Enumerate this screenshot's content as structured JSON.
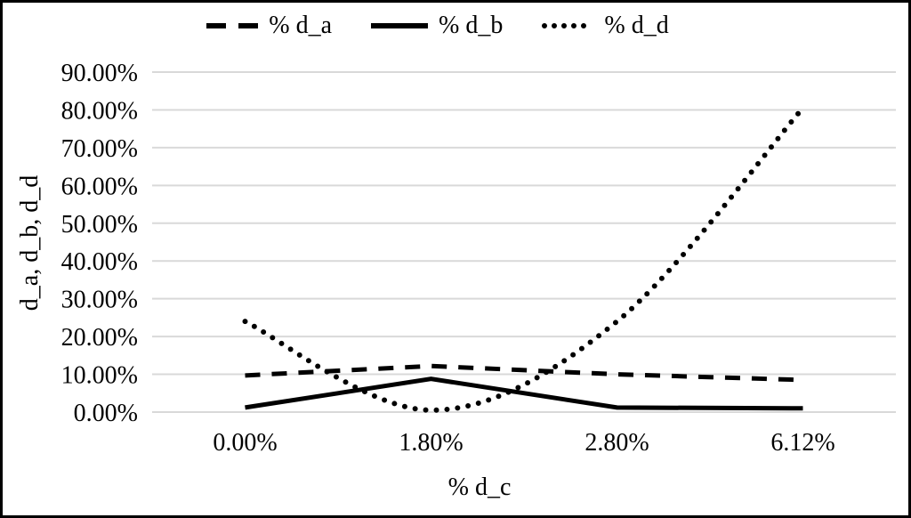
{
  "legend": {
    "items": [
      {
        "label": "% d_a",
        "style": "dashed"
      },
      {
        "label": "% d_b",
        "style": "solid"
      },
      {
        "label": "% d_d",
        "style": "dotted"
      }
    ]
  },
  "chart_data": {
    "type": "line",
    "title": "",
    "xlabel": "% d_c",
    "ylabel": "d_a, d_b, d_d",
    "categories": [
      "0.00%",
      "1.80%",
      "2.80%",
      "6.12%"
    ],
    "series": [
      {
        "name": "% d_a",
        "style": "dashed",
        "smooth": false,
        "values": [
          9.7,
          12.2,
          10.0,
          8.5
        ]
      },
      {
        "name": "% d_b",
        "style": "solid",
        "smooth": false,
        "values": [
          1.2,
          8.8,
          1.2,
          1.0
        ]
      },
      {
        "name": "% d_d",
        "style": "dotted",
        "smooth": true,
        "values": [
          24.0,
          0.5,
          24.0,
          80.5
        ]
      }
    ],
    "ylim": [
      0,
      90
    ],
    "ytick_step": 10,
    "yticks": [
      "0.00%",
      "10.00%",
      "20.00%",
      "30.00%",
      "40.00%",
      "50.00%",
      "60.00%",
      "70.00%",
      "80.00%",
      "90.00%"
    ],
    "grid": true,
    "legend_position": "top",
    "line_color": "#000000",
    "grid_color": "#d9d9d9",
    "background_color": "#ffffff",
    "border_color": "#000000"
  }
}
